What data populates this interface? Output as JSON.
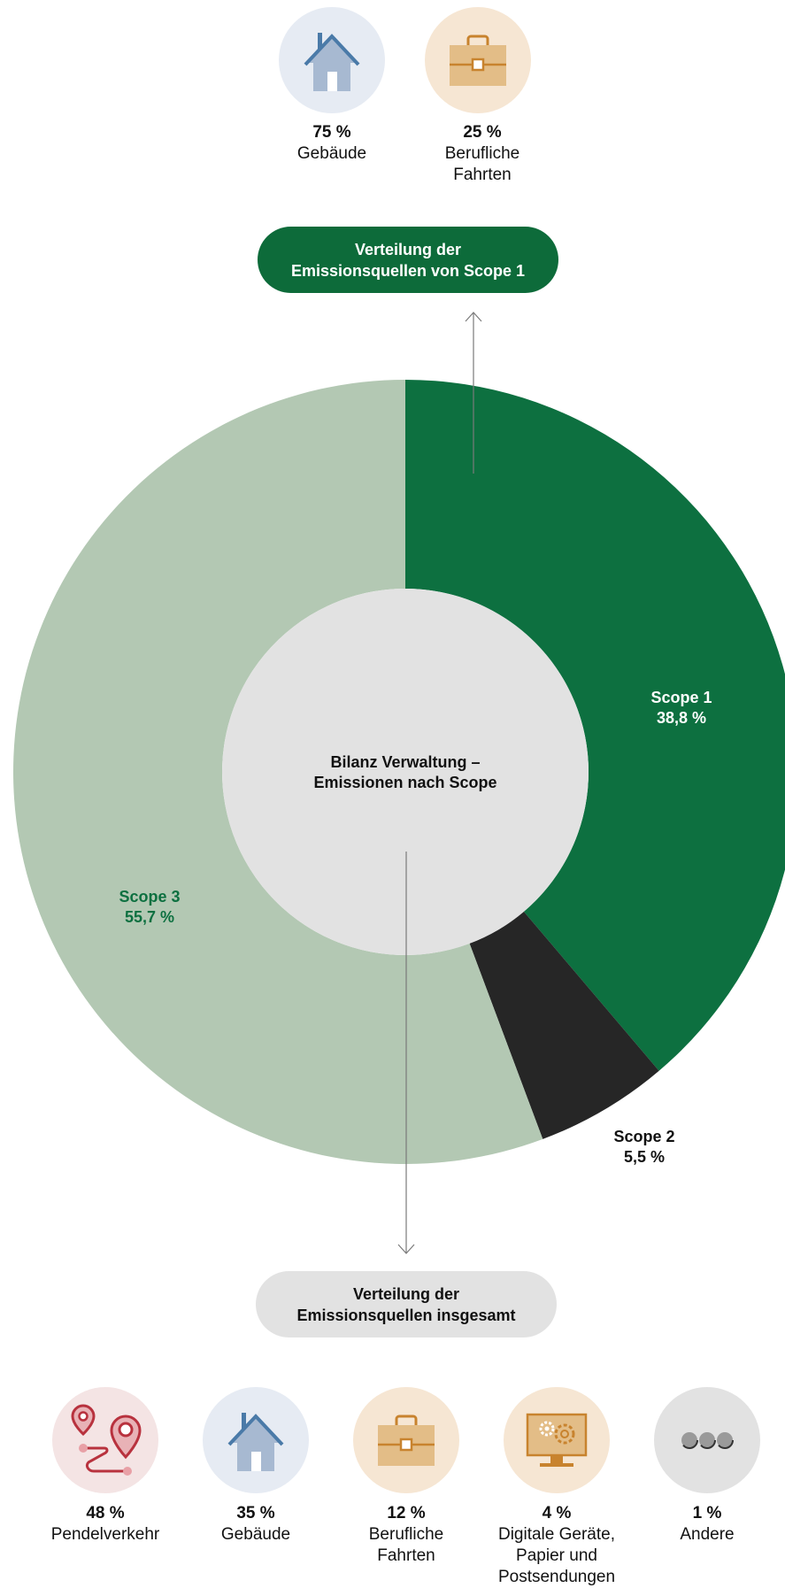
{
  "colors": {
    "scope1": "#0d7040",
    "scope2": "#262626",
    "scope3": "#b3c8b3",
    "center": "#e2e2e2",
    "scope3_label": "#0d7040",
    "arrow": "#7a7a7a",
    "pill_green": "#0d6b3a",
    "pill_grey": "#e2e2e2",
    "bg_red": "#f4e4e4",
    "bg_blue": "#e6ebf3",
    "bg_orange": "#f6e6d3",
    "bg_grey": "#e2e2e2"
  },
  "scope1_breakdown": {
    "label_line1": "Verteilung der",
    "label_line2": "Emissionsquellen von Scope 1",
    "items": [
      {
        "icon": "house-icon",
        "percent": "75 %",
        "label": "Gebäude"
      },
      {
        "icon": "briefcase-icon",
        "percent": "25 %",
        "label_line1": "Berufliche",
        "label_line2": "Fahrten"
      }
    ]
  },
  "chart_data": {
    "type": "pie",
    "title": "Bilanz Verwaltung –",
    "subtitle": "Emissionen nach Scope",
    "slices": [
      {
        "name": "Scope 1",
        "value": 38.8,
        "label": "38,8 %"
      },
      {
        "name": "Scope 2",
        "value": 5.5,
        "label": "5,5 %"
      },
      {
        "name": "Scope 3",
        "value": 55.7,
        "label": "55,7 %"
      }
    ]
  },
  "total_breakdown": {
    "label_line1": "Verteilung der",
    "label_line2": "Emissionsquellen insgesamt",
    "items": [
      {
        "icon": "commute-route-icon",
        "percent": "48 %",
        "label": "Pendelverkehr"
      },
      {
        "icon": "house-icon",
        "percent": "35 %",
        "label": "Gebäude"
      },
      {
        "icon": "briefcase-icon",
        "percent": "12 %",
        "label_line1": "Berufliche",
        "label_line2": "Fahrten"
      },
      {
        "icon": "computer-gear-icon",
        "percent": "4 %",
        "label_line1": "Digitale Geräte,",
        "label_line2": "Papier und",
        "label_line3": "Postsendungen"
      },
      {
        "icon": "more-dots-icon",
        "percent": "1 %",
        "label": "Andere"
      }
    ]
  }
}
